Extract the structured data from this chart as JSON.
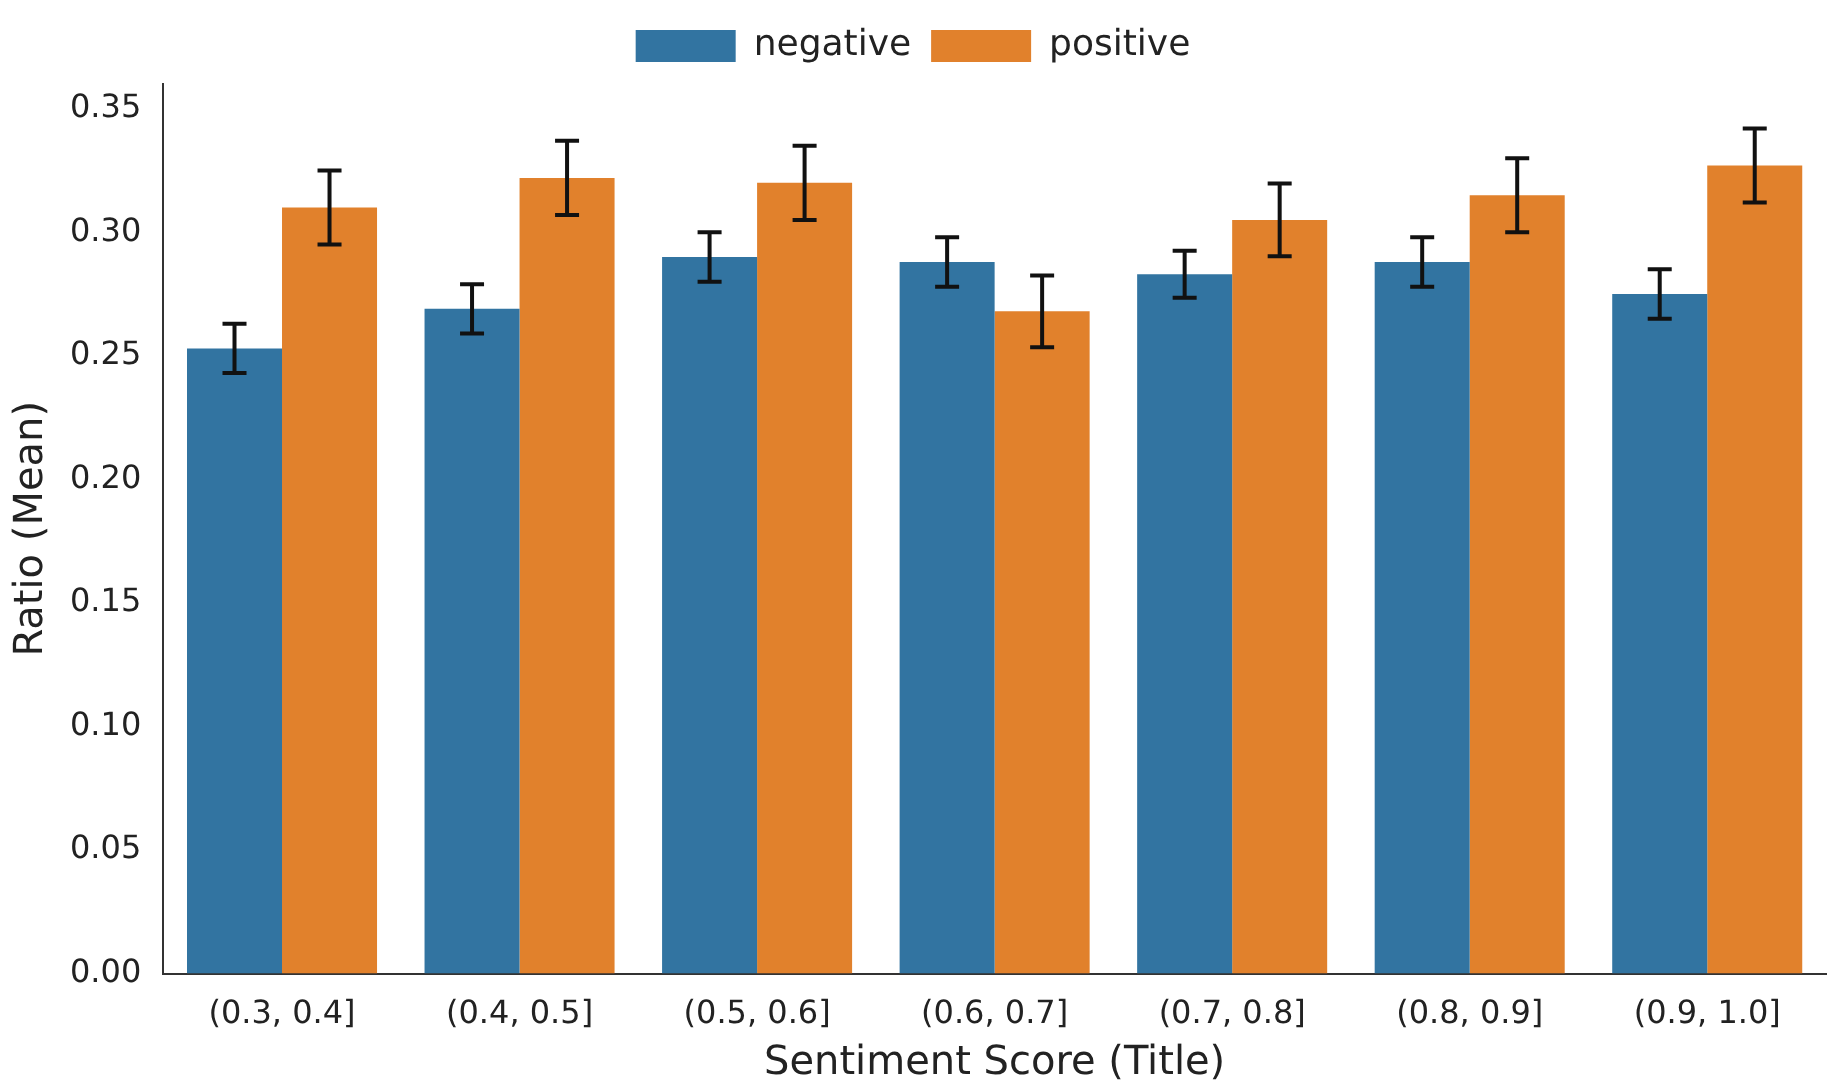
{
  "chart_data": {
    "type": "bar",
    "xlabel": "Sentiment Score (Title)",
    "ylabel": "Ratio (Mean)",
    "categories": [
      "(0.3, 0.4]",
      "(0.4, 0.5]",
      "(0.5, 0.6]",
      "(0.6, 0.7]",
      "(0.7, 0.8]",
      "(0.8, 0.9]",
      "(0.9, 1.0]"
    ],
    "series": [
      {
        "name": "negative",
        "color": "#3274a1",
        "values": [
          0.253,
          0.269,
          0.29,
          0.288,
          0.283,
          0.288,
          0.275
        ],
        "errors": [
          0.01,
          0.01,
          0.01,
          0.01,
          0.0095,
          0.01,
          0.01
        ]
      },
      {
        "name": "positive",
        "color": "#e1812c",
        "values": [
          0.31,
          0.322,
          0.32,
          0.268,
          0.305,
          0.315,
          0.327
        ],
        "errors": [
          0.015,
          0.015,
          0.015,
          0.0145,
          0.0147,
          0.015,
          0.015
        ]
      }
    ],
    "ylim": [
      0,
      0.36
    ],
    "yticks": [
      {
        "value": 0,
        "label": "0.00"
      },
      {
        "value": 0.05,
        "label": "0.05"
      },
      {
        "value": 0.1,
        "label": "0.10"
      },
      {
        "value": 0.15,
        "label": "0.15"
      },
      {
        "value": 0.2,
        "label": "0.20"
      },
      {
        "value": 0.25,
        "label": "0.25"
      },
      {
        "value": 0.3,
        "label": "0.30"
      },
      {
        "value": 0.35,
        "label": "0.35"
      }
    ],
    "legend": "top"
  }
}
